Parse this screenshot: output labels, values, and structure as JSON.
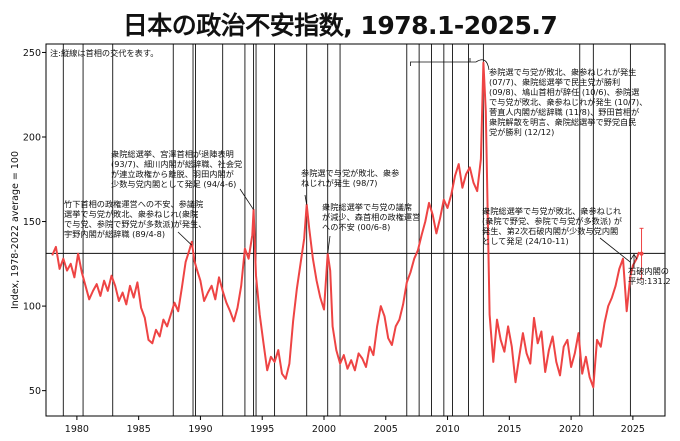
{
  "chart_data": {
    "type": "line",
    "title": "日本の政治不安指数, 1978.1-2025.7",
    "ylabel": "Index, 1978-2022 average = 100",
    "xlim": [
      1977.5,
      2027.6
    ],
    "ylim": [
      35,
      255
    ],
    "x_ticks": [
      1980,
      1985,
      1990,
      1995,
      2000,
      2005,
      2010,
      2015,
      2020,
      2025
    ],
    "y_ticks": [
      50,
      100,
      150,
      200,
      250
    ],
    "grid": false,
    "note": "注:縦線は首相の交代を表す。",
    "reference_line": {
      "y": 131.2,
      "label": "石破内閣の平均:131.2"
    },
    "pm_change_years": [
      1978.9,
      1980.5,
      1982.9,
      1987.8,
      1989.4,
      1989.6,
      1991.8,
      1993.6,
      1994.3,
      1994.5,
      1996.0,
      1998.6,
      2000.3,
      2001.3,
      2006.7,
      2007.7,
      2008.7,
      2009.7,
      2010.4,
      2011.7,
      2012.9,
      2020.7,
      2021.8,
      2024.8
    ],
    "series": [
      {
        "color": "#ee4444",
        "x": [
          1978.0,
          1978.3,
          1978.6,
          1978.9,
          1979.2,
          1979.5,
          1979.8,
          1980.1,
          1980.4,
          1980.7,
          1981.0,
          1981.3,
          1981.6,
          1981.9,
          1982.2,
          1982.5,
          1982.8,
          1983.1,
          1983.4,
          1983.7,
          1984.0,
          1984.3,
          1984.6,
          1984.9,
          1985.2,
          1985.5,
          1985.8,
          1986.1,
          1986.4,
          1986.7,
          1987.0,
          1987.3,
          1987.6,
          1987.9,
          1988.2,
          1988.5,
          1988.8,
          1989.1,
          1989.3,
          1989.5,
          1989.7,
          1990.0,
          1990.3,
          1990.6,
          1990.9,
          1991.2,
          1991.5,
          1991.8,
          1992.1,
          1992.4,
          1992.7,
          1993.0,
          1993.3,
          1993.6,
          1993.9,
          1994.2,
          1994.3,
          1994.5,
          1994.8,
          1995.1,
          1995.4,
          1995.7,
          1996.0,
          1996.3,
          1996.6,
          1996.9,
          1997.2,
          1997.5,
          1997.8,
          1998.1,
          1998.4,
          1998.6,
          1998.8,
          1999.1,
          1999.4,
          1999.7,
          2000.0,
          2000.3,
          2000.5,
          2000.7,
          2001.0,
          2001.3,
          2001.6,
          2001.9,
          2002.2,
          2002.5,
          2002.8,
          2003.1,
          2003.4,
          2003.7,
          2004.0,
          2004.3,
          2004.6,
          2004.9,
          2005.2,
          2005.5,
          2005.8,
          2006.1,
          2006.4,
          2006.7,
          2007.0,
          2007.3,
          2007.6,
          2007.9,
          2008.2,
          2008.5,
          2008.8,
          2009.1,
          2009.4,
          2009.7,
          2010.0,
          2010.3,
          2010.6,
          2010.9,
          2011.2,
          2011.5,
          2011.8,
          2012.1,
          2012.4,
          2012.7,
          2012.9,
          2013.1,
          2013.4,
          2013.7,
          2014.0,
          2014.3,
          2014.6,
          2014.9,
          2015.2,
          2015.5,
          2015.8,
          2016.1,
          2016.4,
          2016.7,
          2017.0,
          2017.3,
          2017.6,
          2017.9,
          2018.2,
          2018.5,
          2018.8,
          2019.1,
          2019.4,
          2019.7,
          2020.0,
          2020.3,
          2020.6,
          2020.9,
          2021.2,
          2021.5,
          2021.8,
          2022.1,
          2022.4,
          2022.7,
          2023.0,
          2023.3,
          2023.6,
          2023.9,
          2024.2,
          2024.5,
          2024.8,
          2025.0,
          2025.3,
          2025.5
        ],
        "y": [
          130,
          135,
          122,
          128,
          121,
          125,
          117,
          131,
          120,
          112,
          104,
          109,
          113,
          106,
          115,
          109,
          118,
          112,
          103,
          108,
          101,
          112,
          105,
          114,
          99,
          93,
          80,
          78,
          86,
          82,
          92,
          88,
          95,
          102,
          97,
          111,
          126,
          133,
          138,
          127,
          122,
          115,
          103,
          108,
          112,
          104,
          117,
          109,
          102,
          97,
          91,
          99,
          112,
          134,
          128,
          142,
          157,
          118,
          95,
          78,
          62,
          70,
          67,
          74,
          60,
          57,
          66,
          91,
          110,
          125,
          140,
          160,
          146,
          128,
          115,
          105,
          98,
          131,
          121,
          88,
          74,
          66,
          71,
          63,
          68,
          62,
          72,
          69,
          64,
          76,
          71,
          88,
          100,
          94,
          81,
          77,
          88,
          92,
          101,
          114,
          120,
          128,
          133,
          142,
          150,
          161,
          154,
          143,
          152,
          163,
          158,
          166,
          177,
          184,
          170,
          178,
          182,
          173,
          168,
          187,
          244,
          215,
          95,
          67,
          92,
          80,
          73,
          88,
          76,
          55,
          70,
          84,
          72,
          66,
          93,
          78,
          85,
          61,
          74,
          82,
          67,
          59,
          76,
          80,
          64,
          72,
          84,
          60,
          70,
          58,
          52,
          80,
          76,
          90,
          100,
          105,
          112,
          122,
          128,
          97,
          118,
          124,
          128,
          132
        ],
        "markers": [
          {
            "x": 2025.7,
            "y": 131,
            "err": 15
          }
        ]
      }
    ],
    "annotations": [
      "竹下首相の政権運営への不安、参議院",
      "選挙で与党が敗北、衆参ねじれ(衆院",
      "で与党、参院で野党が多数派)が発生、",
      "宇野内閣が総辞職 (89/4-8)",
      "衆院総選挙、宮澤首相が退陣表明",
      "(93/7)、細川内閣が総辞職、社会党",
      "が連立政権から離脱、羽田内閣が",
      "少数与党内閣として発足 (94/4-6)",
      "参院選で与党が敗北、衆参",
      "ねじれが発生 (98/7)",
      "衆院総選挙で与党の議席",
      "が減少、森首相の政権運営",
      "への不安 (00/6-8)",
      "参院選で与党が敗北、衆参ねじれが発生",
      "(07/7)、衆院総選挙で民主党が勝利",
      "(09/8)、鳩山首相が辞任 (10/6)、参院選",
      "で与党が敗北、衆参ねじれが発生 (10/7)、",
      "菅直人内閣が総辞職 (11/8)、野田首相が",
      "衆院解散を明言、衆院総選挙で野党自民",
      "党が勝利 (12/12)",
      "衆院総選挙で与党が敗北、衆参ねじれ",
      "(衆院で野党、参院で与党が多数派) が",
      "発生、第2次石破内閣が少数与党内閣",
      "として発足 (24/10-11)"
    ]
  }
}
